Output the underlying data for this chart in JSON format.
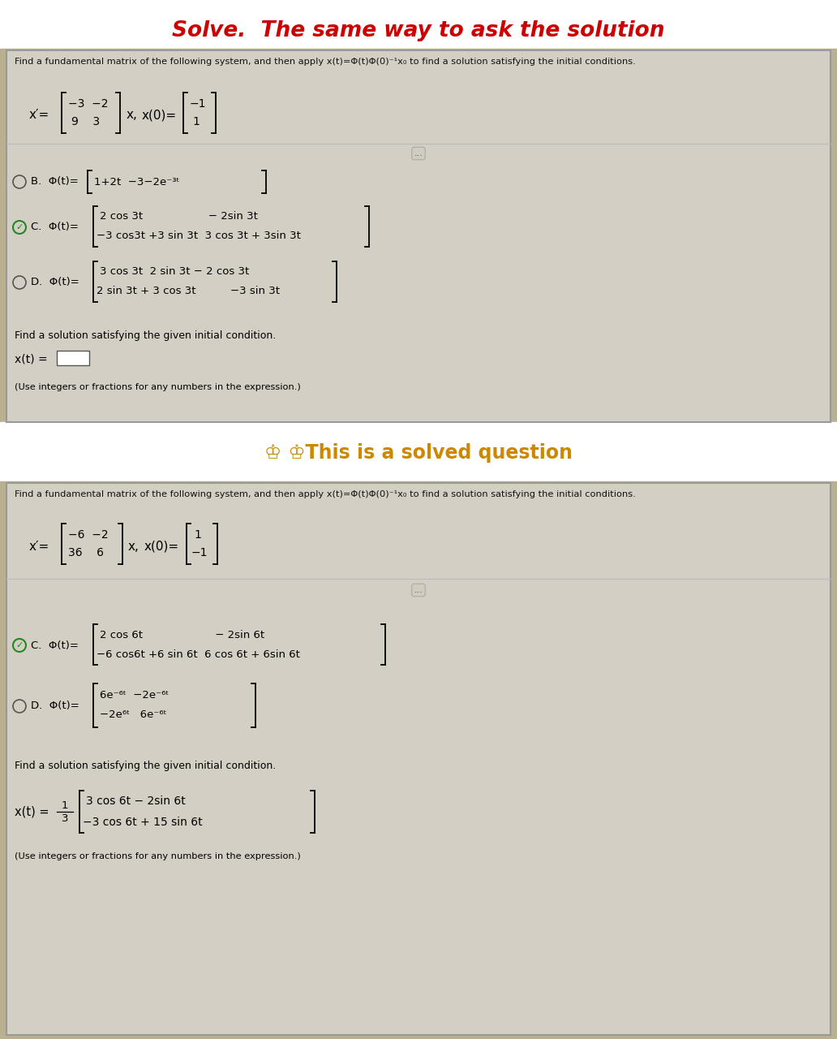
{
  "title": "Solve.  The same way to ask the solution",
  "title_color": "#cc0000",
  "title_fontsize": 19,
  "solved_label": "♔ ♔This is a solved question",
  "solved_color": "#cc8800",
  "solved_fontsize": 17,
  "panel1": {
    "instruction": "Find a fundamental matrix of the following system, and then apply x(t)=Φ(t)Φ(0)⁻¹x₀ to find a solution satisfying the initial conditions.",
    "optB_row1": "1+2t  −3−2e⁻³ᵗ",
    "optC_row1": "2 cos 3t                   − 2sin 3t",
    "optC_row2": "−3 cos3t +3 sin 3t  3 cos 3t + 3sin 3t",
    "optD_row1": "3 cos 3t  2 sin 3t − 2 cos 3t",
    "optD_row2": "2 sin 3t + 3 cos 3t          −3 sin 3t",
    "find_solution": "Find a solution satisfying the given initial condition.",
    "xt_label": "x(t) =",
    "use_note": "(Use integers or fractions for any numbers in the expression.)"
  },
  "panel2": {
    "instruction": "Find a fundamental matrix of the following system, and then apply x(t)=Φ(t)Φ(0)⁻¹x₀ to find a solution satisfying the initial conditions.",
    "optC_row1": "2 cos 6t                     − 2sin 6t",
    "optC_row2": "−6 cos6t +6 sin 6t  6 cos 6t + 6sin 6t",
    "optD_row1": "6e⁻⁶ᵗ  −2e⁻⁶ᵗ",
    "optD_row2": "−2e⁶ᵗ   6e⁻⁶ᵗ",
    "find_solution": "Find a solution satisfying the given initial condition.",
    "xt_row1": "3 cos 6t − 2sin 6t",
    "xt_row2": "−3 cos 6t + 15 sin 6t",
    "use_note": "(Use integers or fractions for any numbers in the expression.)"
  },
  "bg_color": "#ffffff",
  "panel_bg": "#c8c0b0",
  "panel_inner_bg": "#d8d4cc",
  "border_color": "#888888",
  "text_color": "#111111",
  "check_color": "#228822"
}
